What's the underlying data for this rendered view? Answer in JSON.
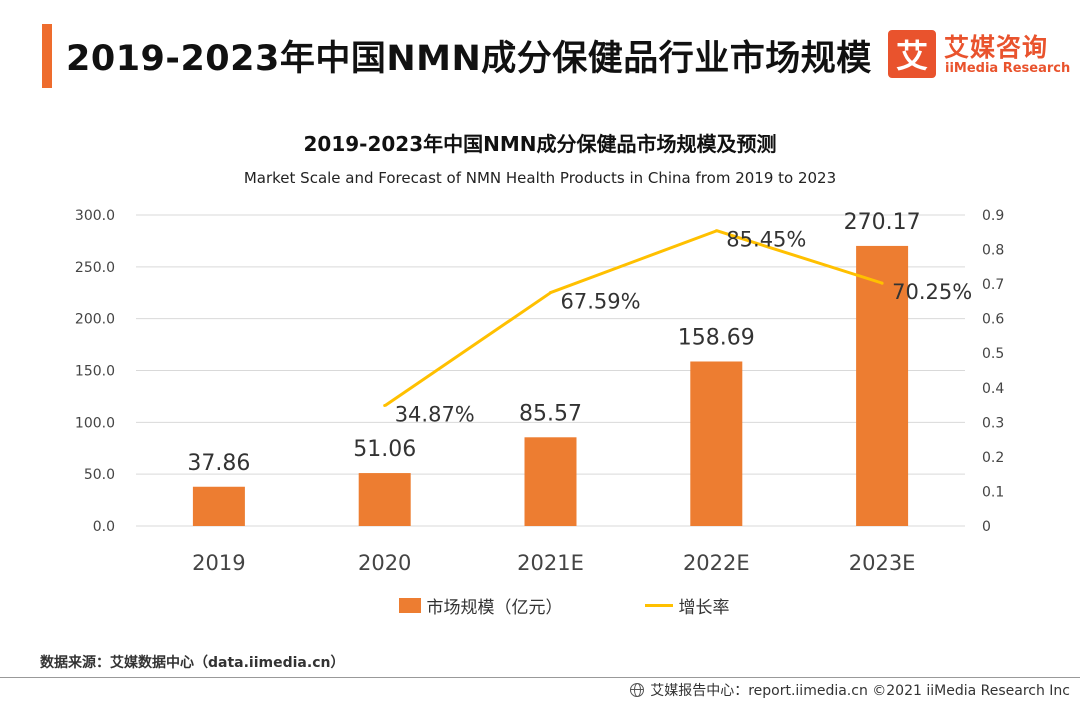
{
  "header": {
    "title": "2019-2023年中国NMN成分保健品行业市场规模"
  },
  "logo": {
    "mark": "艾",
    "name_cn": "艾媒咨询",
    "name_en": "iiMedia Research"
  },
  "chart_data": {
    "type": "bar",
    "title": "2019-2023年中国NMN成分保健品市场规模及预测",
    "subtitle": "Market Scale and Forecast of NMN Health Products in China from 2019 to 2023",
    "categories": [
      "2019",
      "2020",
      "2021E",
      "2022E",
      "2023E"
    ],
    "series": [
      {
        "name": "市场规模（亿元）",
        "type": "bar",
        "axis": "left",
        "color": "#ED7D31",
        "values": [
          37.86,
          51.06,
          85.57,
          158.69,
          270.17
        ],
        "labels": [
          "37.86",
          "51.06",
          "85.57",
          "158.69",
          "270.17"
        ]
      },
      {
        "name": "增长率",
        "type": "line",
        "axis": "right",
        "color": "#FFC000",
        "values": [
          null,
          0.3487,
          0.6759,
          0.8545,
          0.7025
        ],
        "labels": [
          "",
          "34.87%",
          "67.59%",
          "85.45%",
          "70.25%"
        ]
      }
    ],
    "y_left": {
      "lim": [
        0,
        300
      ],
      "ticks": [
        "0.0",
        "50.0",
        "100.0",
        "150.0",
        "200.0",
        "250.0",
        "300.0"
      ]
    },
    "y_right": {
      "lim": [
        0,
        0.9
      ],
      "ticks": [
        "0",
        "0.1",
        "0.2",
        "0.3",
        "0.4",
        "0.5",
        "0.6",
        "0.7",
        "0.8",
        "0.9"
      ]
    },
    "grid": true,
    "legend_position": "bottom-center"
  },
  "source": "数据来源：艾媒数据中心（data.iimedia.cn）",
  "footer": {
    "text": "艾媒报告中心：report.iimedia.cn  ©2021  iiMedia Research  Inc"
  }
}
